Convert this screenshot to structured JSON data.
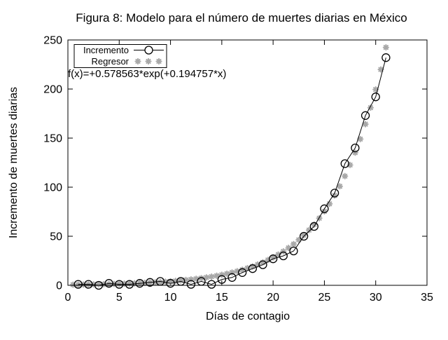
{
  "figure": {
    "colors": {
      "foreground": "#000000",
      "regressor": "#a8a8a8",
      "background": "#ffffff"
    }
  },
  "chart_data": {
    "type": "line",
    "title": "Figura 8: Modelo para el número de muertes diarias en México",
    "xlabel": "Días de contagio",
    "ylabel": "Incremento de muertes diarias",
    "annotation": "f(x)=+0.578563*exp(+0.194757*x)",
    "xlim": [
      0,
      35
    ],
    "ylim": [
      0,
      250
    ],
    "xticks": [
      0,
      5,
      10,
      15,
      20,
      25,
      30,
      35
    ],
    "yticks": [
      0,
      50,
      100,
      150,
      200,
      250
    ],
    "grid": false,
    "legend_position": "top-left",
    "legend_border": true,
    "series": [
      {
        "name": "Incremento",
        "marker": "open-circle",
        "line": "solid",
        "color": "#000000",
        "x": [
          1,
          2,
          3,
          4,
          5,
          6,
          7,
          8,
          9,
          10,
          11,
          12,
          13,
          14,
          15,
          16,
          17,
          18,
          19,
          20,
          21,
          22,
          23,
          24,
          25,
          26,
          27,
          28,
          29,
          30,
          31
        ],
        "values": [
          1,
          1,
          0,
          2,
          1,
          1,
          2,
          3,
          4,
          2,
          4,
          1,
          4,
          1,
          6,
          8,
          13,
          17,
          21,
          27,
          30,
          35,
          50,
          60,
          78,
          94,
          124,
          140,
          173,
          192,
          232
        ]
      },
      {
        "name": "Regresor",
        "marker": "asterisk",
        "line": "none",
        "color": "#a8a8a8",
        "formula": "f(x)=+0.578563*exp(+0.194757*x)",
        "a": 0.578563,
        "b": 0.194757,
        "x_start": 0.5,
        "x_step": 0.5,
        "x_end": 31,
        "values": [
          0.64,
          0.7,
          0.77,
          0.85,
          0.94,
          1.04,
          1.14,
          1.26,
          1.39,
          1.53,
          1.69,
          1.86,
          2.05,
          2.26,
          2.49,
          2.75,
          3.03,
          3.34,
          3.68,
          4.06,
          4.47,
          4.93,
          5.43,
          5.99,
          6.6,
          7.28,
          8.02,
          8.84,
          9.75,
          10.74,
          11.84,
          13.05,
          14.39,
          15.86,
          17.48,
          19.27,
          21.24,
          23.42,
          25.81,
          28.45,
          31.36,
          34.57,
          38.11,
          42.01,
          46.3,
          51.04,
          56.26,
          62.01,
          68.36,
          75.35,
          83.06,
          91.55,
          100.92,
          111.24,
          122.62,
          135.16,
          148.98,
          164.22,
          181.02,
          199.53,
          219.94,
          242.44
        ]
      }
    ]
  }
}
